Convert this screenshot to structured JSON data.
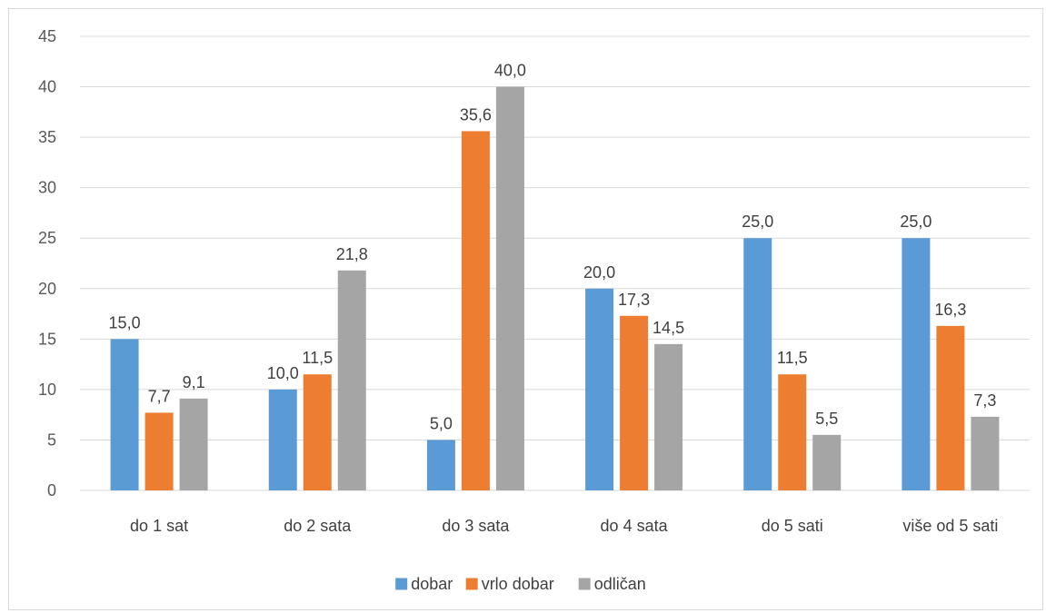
{
  "chart_data": {
    "type": "bar",
    "title": "",
    "xlabel": "",
    "ylabel": "",
    "categories": [
      "do 1 sat",
      "do 2 sata",
      "do 3 sata",
      "do 4 sata",
      "do 5 sati",
      "više od 5 sati"
    ],
    "series": [
      {
        "name": "dobar",
        "color": "#5b9bd5",
        "values": [
          15.0,
          10.0,
          5.0,
          20.0,
          25.0,
          25.0
        ],
        "labels": [
          "15,0",
          "10,0",
          "5,0",
          "20,0",
          "25,0",
          "25,0"
        ]
      },
      {
        "name": "vrlo dobar",
        "color": "#ed7d31",
        "values": [
          7.7,
          11.5,
          35.6,
          17.3,
          11.5,
          16.3
        ],
        "labels": [
          "7,7",
          "11,5",
          "35,6",
          "17,3",
          "11,5",
          "16,3"
        ]
      },
      {
        "name": "odličan",
        "color": "#a5a5a5",
        "values": [
          9.1,
          21.8,
          40.0,
          14.5,
          5.5,
          7.3
        ],
        "labels": [
          "9,1",
          "21,8",
          "40,0",
          "14,5",
          "5,5",
          "7,3"
        ]
      }
    ],
    "ylim": [
      0,
      45
    ],
    "yticks": [
      0,
      5,
      10,
      15,
      20,
      25,
      30,
      35,
      40,
      45
    ],
    "grid": true,
    "legend": "bottom",
    "gridline_color": "#d9d9d9"
  }
}
